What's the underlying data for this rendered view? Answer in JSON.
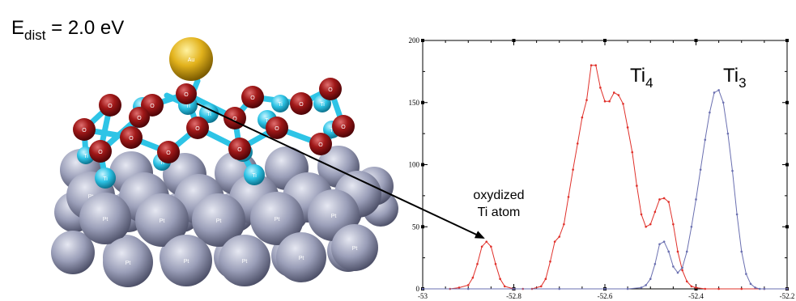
{
  "figure": {
    "energy_label": {
      "main": "E",
      "sub": "dist",
      "rest": " = 2.0 eV"
    },
    "atom_labels": {
      "pt": "Pt",
      "o": "O",
      "ti": "Ti",
      "au": "Au"
    },
    "arrow_label": {
      "line1": "oxydized",
      "line2": "Ti atom"
    }
  },
  "colors": {
    "ti4": "#e0302a",
    "ti3": "#6a6fb0",
    "pt": "#8f93ad",
    "o": "#8e0f13",
    "ti": "#2ec4e6",
    "au": "#e2b21c"
  },
  "chart_data": {
    "type": "line",
    "xlim": [
      -53,
      -52.2
    ],
    "ylim": [
      0,
      200
    ],
    "xticks": [
      "-53",
      "-52.8",
      "-52.6",
      "-52.4",
      "-52.2"
    ],
    "yticks": [
      "0",
      "50",
      "100",
      "150",
      "200"
    ],
    "grid": false,
    "series": [
      {
        "name": "Ti4",
        "label": {
          "main": "Ti",
          "sub": "4"
        },
        "color": "#e0302a",
        "x": [
          -52.94,
          -52.92,
          -52.9,
          -52.89,
          -52.88,
          -52.87,
          -52.86,
          -52.85,
          -52.84,
          -52.83,
          -52.82,
          -52.8,
          -52.78,
          -52.76,
          -52.74,
          -52.73,
          -52.72,
          -52.71,
          -52.7,
          -52.69,
          -52.68,
          -52.67,
          -52.66,
          -52.65,
          -52.64,
          -52.63,
          -52.62,
          -52.61,
          -52.6,
          -52.59,
          -52.58,
          -52.57,
          -52.56,
          -52.55,
          -52.54,
          -52.53,
          -52.52,
          -52.51,
          -52.5,
          -52.49,
          -52.48,
          -52.47,
          -52.46,
          -52.45,
          -52.44,
          -52.43,
          -52.42,
          -52.41,
          -52.4,
          -52.38,
          -52.35,
          -52.3,
          -52.25,
          -52.2
        ],
        "y": [
          0,
          1,
          3,
          9,
          20,
          34,
          38,
          34,
          20,
          8,
          2,
          0,
          0,
          0,
          2,
          8,
          22,
          38,
          42,
          52,
          74,
          96,
          117,
          138,
          152,
          180,
          180,
          162,
          151,
          151,
          158,
          156,
          149,
          130,
          110,
          83,
          60,
          50,
          52,
          62,
          72,
          73,
          70,
          52,
          30,
          15,
          6,
          2,
          1,
          0,
          0,
          0,
          0,
          0
        ]
      },
      {
        "name": "Ti3",
        "label": {
          "main": "Ti",
          "sub": "3"
        },
        "color": "#6a6fb0",
        "x": [
          -53.0,
          -52.9,
          -52.8,
          -52.7,
          -52.6,
          -52.55,
          -52.52,
          -52.51,
          -52.5,
          -52.49,
          -52.48,
          -52.47,
          -52.46,
          -52.45,
          -52.44,
          -52.43,
          -52.42,
          -52.41,
          -52.4,
          -52.39,
          -52.38,
          -52.37,
          -52.36,
          -52.35,
          -52.34,
          -52.33,
          -52.32,
          -52.31,
          -52.3,
          -52.29,
          -52.28,
          -52.27,
          -52.26,
          -52.25,
          -52.2
        ],
        "y": [
          0,
          0,
          0,
          0,
          0,
          0,
          1,
          3,
          8,
          20,
          36,
          38,
          30,
          18,
          13,
          17,
          30,
          50,
          72,
          96,
          120,
          142,
          158,
          160,
          150,
          125,
          95,
          60,
          30,
          12,
          4,
          1,
          0,
          0,
          0
        ]
      }
    ]
  }
}
